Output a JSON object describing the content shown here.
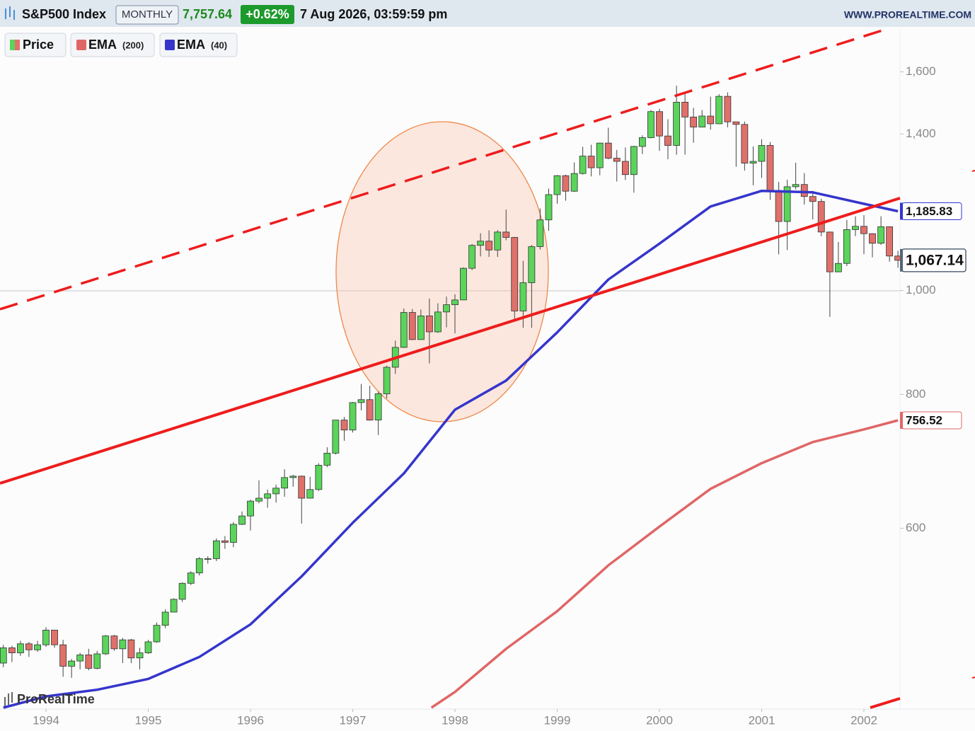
{
  "chart_data": {
    "type": "candlestick",
    "title": "S&P500 Index",
    "timeframe": "MONTHLY",
    "last_price": "7,757.64",
    "change": "+0.62%",
    "timestamp": "7 Aug 2026, 03:59:59 pm",
    "source": "WWW.PROREALTIME.COM",
    "watermark": "ProRealTime",
    "log_scale": true,
    "xlim": [
      1993.55,
      2002.353
    ],
    "xticks": [
      1994,
      1995,
      1996,
      1997,
      1998,
      1999,
      2000,
      2001,
      2002
    ],
    "ylim": [
      408,
      1757
    ],
    "yticks": [
      {
        "value": 1600,
        "label": "1,600"
      },
      {
        "value": 1400,
        "label": "1,400"
      },
      {
        "value": 1000,
        "label": "1,000"
      },
      800,
      600
    ],
    "price": {
      "name": "Price",
      "up_color": "#5ad45a",
      "down_color": "#e0706a",
      "x": [
        1993.583,
        1993.667,
        1993.75,
        1993.833,
        1993.917,
        1994,
        1994.083,
        1994.167,
        1994.25,
        1994.333,
        1994.417,
        1994.5,
        1994.583,
        1994.667,
        1994.75,
        1994.833,
        1994.917,
        1995,
        1995.083,
        1995.167,
        1995.25,
        1995.333,
        1995.417,
        1995.5,
        1995.583,
        1995.667,
        1995.75,
        1995.833,
        1995.917,
        1996,
        1996.083,
        1996.167,
        1996.25,
        1996.333,
        1996.417,
        1996.5,
        1996.583,
        1996.667,
        1996.75,
        1996.833,
        1996.917,
        1997,
        1997.083,
        1997.167,
        1997.25,
        1997.333,
        1997.417,
        1997.5,
        1997.583,
        1997.667,
        1997.75,
        1997.833,
        1997.917,
        1998,
        1998.083,
        1998.167,
        1998.25,
        1998.333,
        1998.417,
        1998.5,
        1998.583,
        1998.667,
        1998.75,
        1998.833,
        1998.917,
        1999,
        1999.083,
        1999.167,
        1999.25,
        1999.333,
        1999.417,
        1999.5,
        1999.583,
        1999.667,
        1999.75,
        1999.833,
        1999.917,
        2000,
        2000.083,
        2000.167,
        2000.25,
        2000.333,
        2000.417,
        2000.5,
        2000.583,
        2000.667,
        2000.75,
        2000.833,
        2000.917,
        2001,
        2001.083,
        2001.167,
        2001.25,
        2001.333,
        2001.417,
        2001.5,
        2001.583,
        2001.667,
        2001.75,
        2001.833,
        2001.917,
        2002,
        2002.083,
        2002.167,
        2002.25,
        2002.333
      ],
      "open": [
        449,
        464,
        459,
        468,
        462,
        467,
        482,
        467,
        446,
        451,
        457,
        444,
        458,
        476,
        463,
        472,
        454,
        459,
        470,
        487,
        501,
        515,
        533,
        545,
        562,
        562,
        584,
        582,
        605,
        616,
        636,
        640,
        646,
        654,
        669,
        671,
        640,
        652,
        687,
        705,
        757,
        741,
        786,
        791,
        757,
        801,
        848,
        885,
        954,
        900,
        947,
        915,
        955,
        970,
        980,
        1049,
        1102,
        1112,
        1091,
        1134,
        1121,
        957,
        1017,
        1099,
        1164,
        1229,
        1280,
        1238,
        1286,
        1335,
        1302,
        1373,
        1329,
        1320,
        1283,
        1363,
        1389,
        1469,
        1394,
        1366,
        1499,
        1452,
        1421,
        1455,
        1431,
        1518,
        1437,
        1429,
        1315,
        1320,
        1366,
        1240,
        1160,
        1250,
        1256,
        1224,
        1211,
        1134,
        1041,
        1060,
        1140,
        1148,
        1130,
        1107,
        1147,
        1077
      ],
      "high": [
        467,
        466,
        471,
        470,
        471,
        485,
        482,
        472,
        453,
        459,
        463,
        461,
        477,
        477,
        474,
        473,
        464,
        472,
        490,
        504,
        516,
        534,
        547,
        564,
        565,
        587,
        590,
        608,
        622,
        638,
        665,
        652,
        659,
        681,
        673,
        672,
        670,
        690,
        714,
        757,
        762,
        787,
        818,
        815,
        805,
        851,
        898,
        962,
        961,
        960,
        983,
        973,
        987,
        992,
        1051,
        1105,
        1131,
        1138,
        1139,
        1190,
        1122,
        1066,
        1103,
        1193,
        1245,
        1282,
        1283,
        1317,
        1362,
        1368,
        1374,
        1419,
        1353,
        1360,
        1365,
        1396,
        1474,
        1478,
        1445,
        1553,
        1527,
        1481,
        1474,
        1517,
        1525,
        1531,
        1437,
        1438,
        1363,
        1384,
        1376,
        1263,
        1269,
        1316,
        1287,
        1239,
        1218,
        1135,
        1110,
        1164,
        1173,
        1176,
        1131,
        1173,
        1147,
        1089
      ],
      "low": [
        445,
        450,
        456,
        455,
        460,
        465,
        464,
        436,
        435,
        443,
        442,
        443,
        457,
        461,
        449,
        449,
        443,
        458,
        469,
        484,
        501,
        512,
        531,
        542,
        556,
        559,
        574,
        576,
        604,
        597,
        633,
        627,
        634,
        642,
        656,
        606,
        640,
        650,
        684,
        703,
        724,
        737,
        773,
        756,
        733,
        793,
        836,
        884,
        899,
        900,
        855,
        913,
        924,
        912,
        980,
        1045,
        1076,
        1075,
        1075,
        1114,
        940,
        923,
        923,
        1092,
        1137,
        1205,
        1213,
        1236,
        1283,
        1278,
        1281,
        1326,
        1264,
        1268,
        1234,
        1341,
        1387,
        1350,
        1326,
        1339,
        1339,
        1374,
        1420,
        1413,
        1431,
        1420,
        1305,
        1294,
        1254,
        1274,
        1215,
        1081,
        1091,
        1243,
        1203,
        1165,
        1124,
        945,
        1040,
        1054,
        1124,
        1081,
        1074,
        1103,
        1064,
        1050
      ],
      "close": [
        464,
        459,
        468,
        462,
        467,
        482,
        467,
        446,
        451,
        457,
        444,
        458,
        476,
        463,
        472,
        454,
        459,
        470,
        487,
        501,
        515,
        533,
        545,
        562,
        562,
        584,
        582,
        605,
        616,
        636,
        640,
        646,
        654,
        669,
        671,
        640,
        652,
        687,
        705,
        757,
        741,
        786,
        791,
        757,
        801,
        848,
        885,
        954,
        900,
        947,
        915,
        955,
        970,
        980,
        1049,
        1102,
        1112,
        1091,
        1134,
        1121,
        957,
        1017,
        1099,
        1164,
        1229,
        1280,
        1238,
        1286,
        1335,
        1302,
        1373,
        1329,
        1320,
        1283,
        1363,
        1389,
        1469,
        1394,
        1366,
        1499,
        1452,
        1421,
        1455,
        1431,
        1518,
        1437,
        1429,
        1315,
        1320,
        1366,
        1240,
        1160,
        1250,
        1256,
        1224,
        1211,
        1134,
        1041,
        1060,
        1140,
        1148,
        1130,
        1107,
        1147,
        1077,
        1067.14
      ],
      "last_label": "1,067.14"
    },
    "series": [
      {
        "name": "EMA",
        "period": "(200)",
        "color": "#e06666",
        "x": [
          1997.77,
          1998,
          1998.5,
          1999,
          1999.5,
          2000,
          2000.5,
          2001,
          2001.5,
          2002,
          2002.333
        ],
        "values": [
          408,
          422,
          463,
          502,
          554,
          602,
          653,
          690,
          722,
          742,
          756.52
        ],
        "last_label": "756.52"
      },
      {
        "name": "EMA",
        "period": "(40)",
        "color": "#3535cc",
        "x": [
          1993.583,
          1994,
          1994.5,
          1995,
          1995.5,
          1996,
          1996.5,
          1997,
          1997.5,
          1998,
          1998.5,
          1999,
          1999.5,
          2000,
          2000.5,
          2001,
          2001.5,
          2002,
          2002.333
        ],
        "values": [
          408,
          418,
          424,
          434,
          455,
          488,
          541,
          607,
          675,
          774,
          824,
          914,
          1024,
          1106,
          1198,
          1239,
          1235,
          1205,
          1185.83
        ],
        "last_label": "1,185.83"
      }
    ]
  }
}
